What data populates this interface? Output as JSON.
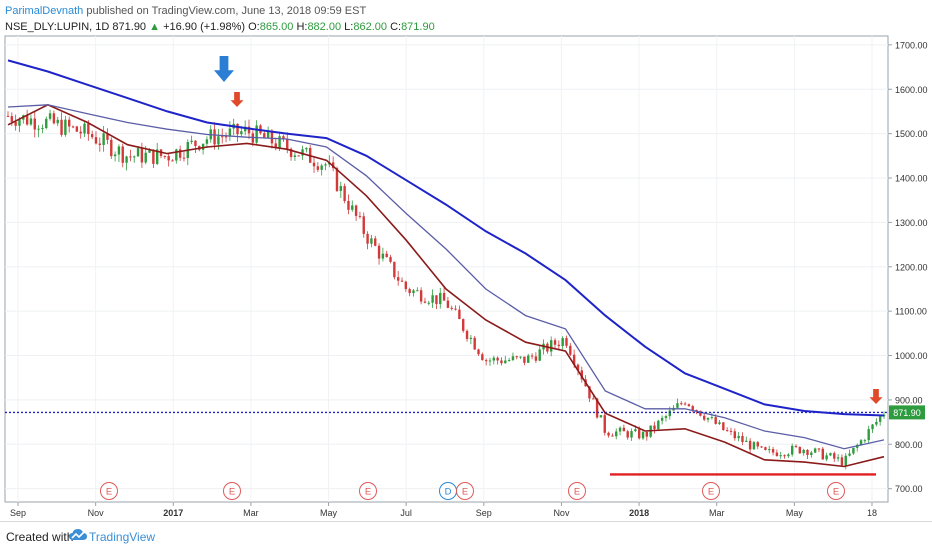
{
  "header": {
    "author": "ParimalDevnath",
    "published": "published on TradingView.com, June 13, 2018 09:59 EST",
    "symbol": "NSE_DLY:LUPIN, 1D",
    "last": "871.90",
    "change_arrow": "▲",
    "change": "+16.90 (+1.98%)",
    "open_label": "O:",
    "open": "865.00",
    "high_label": "H:",
    "high": "882.00",
    "low_label": "L:",
    "low": "862.00",
    "close_label": "C:",
    "close": "871.90"
  },
  "footer": {
    "created_with": "Created with",
    "brand": "TradingView"
  },
  "colors": {
    "up_candle": "#2e9b3e",
    "down_candle": "#d23a3a",
    "ma_slow": "#1f24c8",
    "ma_mid": "#5b5ea6",
    "ma_fast": "#8b1a1a",
    "support": "#e02020",
    "price_line": "#1f24c8",
    "arrow_blue": "#2a7fd4",
    "arrow_red": "#e04a2a",
    "earnings": "#e05a5a",
    "dividend": "#2a8ad4"
  },
  "icons": [
    "arrow-down-icon",
    "tradingview-cloud-icon"
  ],
  "chart_data": {
    "type": "line",
    "title": "NSE_DLY:LUPIN, 1D",
    "ylim": [
      670,
      1720
    ],
    "yticks": [
      1700,
      1600,
      1500,
      1400,
      1300,
      1200,
      1100,
      1000,
      900,
      800,
      700
    ],
    "ytick_labels": [
      "1700.00",
      "1600.00",
      "1500.00",
      "1400.00",
      "1300.00",
      "1200.00",
      "1100.00",
      "1000.00",
      "900.00",
      "800.00",
      "700.00"
    ],
    "xtick_labels": [
      "Sep",
      "Nov",
      "2017",
      "Mar",
      "May",
      "Jul",
      "Sep",
      "Nov",
      "2018",
      "Mar",
      "May",
      "18"
    ],
    "x": [
      "Aug 2016",
      "Sep 2016",
      "Oct 2016",
      "Nov 2016",
      "Dec 2016",
      "Jan 2017",
      "Feb 2017",
      "Mar 2017",
      "Apr 2017",
      "May 2017",
      "Jun 2017",
      "Jul 2017",
      "Aug 2017",
      "Sep 2017",
      "Oct 2017",
      "Nov 2017",
      "Dec 2017",
      "Jan 2018",
      "Feb 2018",
      "Mar 2018",
      "Apr 2018",
      "May 2018",
      "Jun 2018"
    ],
    "series": [
      {
        "values": [
          1540,
          1525,
          1500,
          1450,
          1450,
          1490,
          1505,
          1470,
          1430,
          1270,
          1150,
          1120,
          990,
          990,
          1040,
          830,
          820,
          900,
          830,
          780,
          790,
          760,
          872
        ]
      },
      {
        "values": [
          1520,
          1565,
          1525,
          1475,
          1455,
          1470,
          1478,
          1465,
          1440,
          1360,
          1260,
          1150,
          1080,
          1030,
          1010,
          870,
          830,
          835,
          805,
          765,
          760,
          750,
          772
        ]
      },
      {
        "values": [
          1560,
          1565,
          1545,
          1525,
          1510,
          1498,
          1492,
          1488,
          1470,
          1405,
          1320,
          1240,
          1150,
          1090,
          1060,
          920,
          880,
          880,
          860,
          830,
          815,
          790,
          810
        ]
      },
      {
        "values": [
          1665,
          1640,
          1610,
          1580,
          1550,
          1525,
          1512,
          1500,
          1490,
          1450,
          1395,
          1340,
          1280,
          1230,
          1170,
          1090,
          1020,
          960,
          925,
          890,
          875,
          868,
          865
        ]
      }
    ],
    "last_price": 871.9,
    "last_price_label": "871.90",
    "support_level": 732,
    "earnings_marker": "E",
    "dividend_marker": "D",
    "grid": true
  }
}
